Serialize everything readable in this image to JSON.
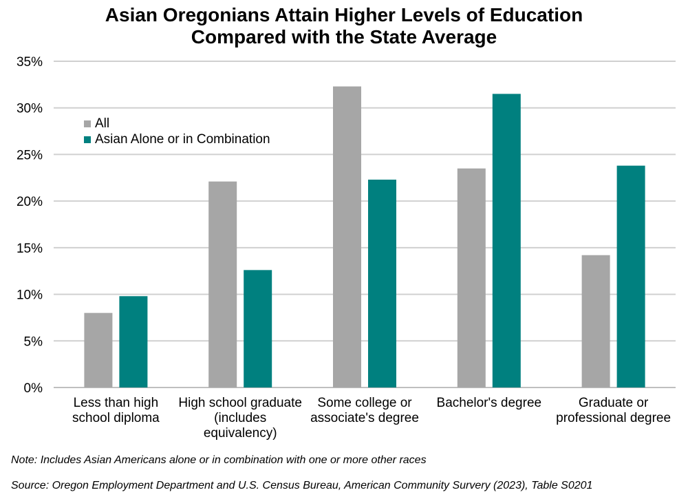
{
  "title_lines": [
    "Asian Oregonians Attain Higher Levels of Education",
    "Compared with the State Average"
  ],
  "notes": {
    "note": "Note: Includes Asian Americans alone or in combination with one or more other races",
    "source": "Source: Oregon Employment Department and U.S. Census Bureau, American Community Survery (2023), Table S0201"
  },
  "colors": {
    "all": "#a6a6a6",
    "asian": "#00807f",
    "grid": "#d0d0d0"
  },
  "chart_data": {
    "type": "bar",
    "title": "Asian Oregonians Attain Higher Levels of Education Compared with the State Average",
    "categories": [
      [
        "Less than high",
        "school diploma"
      ],
      [
        "High school graduate",
        "(includes",
        "equivalency)"
      ],
      [
        "Some college or",
        "associate's degree"
      ],
      [
        "Bachelor's degree"
      ],
      [
        "Graduate or",
        "professional degree"
      ]
    ],
    "series": [
      {
        "name": "All",
        "values": [
          8.0,
          22.1,
          32.3,
          23.5,
          14.2
        ]
      },
      {
        "name": "Asian Alone or in Combination",
        "values": [
          9.8,
          12.6,
          22.3,
          31.5,
          23.8
        ]
      }
    ],
    "ylim": [
      0,
      35
    ],
    "yticks": [
      "0%",
      "5%",
      "10%",
      "15%",
      "20%",
      "25%",
      "30%",
      "35%"
    ],
    "ytick_values": [
      0,
      5,
      10,
      15,
      20,
      25,
      30,
      35
    ],
    "grid": true,
    "legend": "top-left"
  }
}
